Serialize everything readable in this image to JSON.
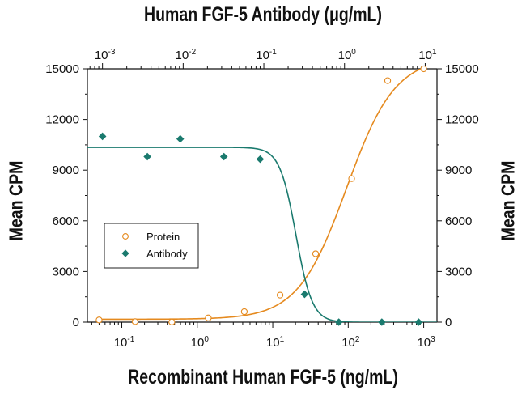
{
  "chart_data": {
    "type": "scatter",
    "title": "Human FGF-5 Antibody (μg/mL)",
    "xlabel": "Recombinant Human FGF-5 (ng/mL)",
    "ylabel": "Mean CPM",
    "ylabel_right": "Mean CPM",
    "x_scale": "log",
    "xlim": [
      0.035,
      1500
    ],
    "x_ticks": [
      0.1,
      1,
      10,
      100,
      1000
    ],
    "x_tick_labels": [
      "10-1",
      "100",
      "101",
      "102",
      "103"
    ],
    "x_top_scale": "log",
    "x_top_lim": [
      0.00065,
      14
    ],
    "x_top_ticks": [
      0.001,
      0.01,
      0.1,
      1,
      10
    ],
    "x_top_tick_labels": [
      "10-3",
      "10-2",
      "10-1",
      "100",
      "101"
    ],
    "ylim": [
      0,
      15000
    ],
    "y_ticks": [
      0,
      3000,
      6000,
      9000,
      12000,
      15000
    ],
    "y_tick_labels": [
      "0",
      "3000",
      "6000",
      "9000",
      "12000",
      "15000"
    ],
    "grid": false,
    "legend_position": "left-middle",
    "series": [
      {
        "name": "Protein",
        "axis": "bottom",
        "marker": "open-circle",
        "color": "#e58a1f",
        "x": [
          0.05,
          0.15,
          0.46,
          1.4,
          4.2,
          12.5,
          37,
          111,
          333,
          1000
        ],
        "y": [
          130,
          30,
          10,
          250,
          620,
          1600,
          4050,
          8500,
          14300,
          15000
        ],
        "fit": {
          "bottom": 170,
          "top": 15700,
          "ec50": 95,
          "hill": 1.35
        }
      },
      {
        "name": "Antibody",
        "axis": "top",
        "marker": "filled-diamond",
        "color": "#1a7a6e",
        "x": [
          0.001,
          0.0036,
          0.0092,
          0.032,
          0.09,
          0.32,
          0.85,
          2.9,
          8.3
        ],
        "y": [
          11000,
          9800,
          10850,
          9800,
          9650,
          1650,
          0,
          0,
          0
        ],
        "fit": {
          "bottom": -10,
          "top": 10350,
          "ic50": 0.25,
          "hill": 4.3
        }
      }
    ]
  }
}
